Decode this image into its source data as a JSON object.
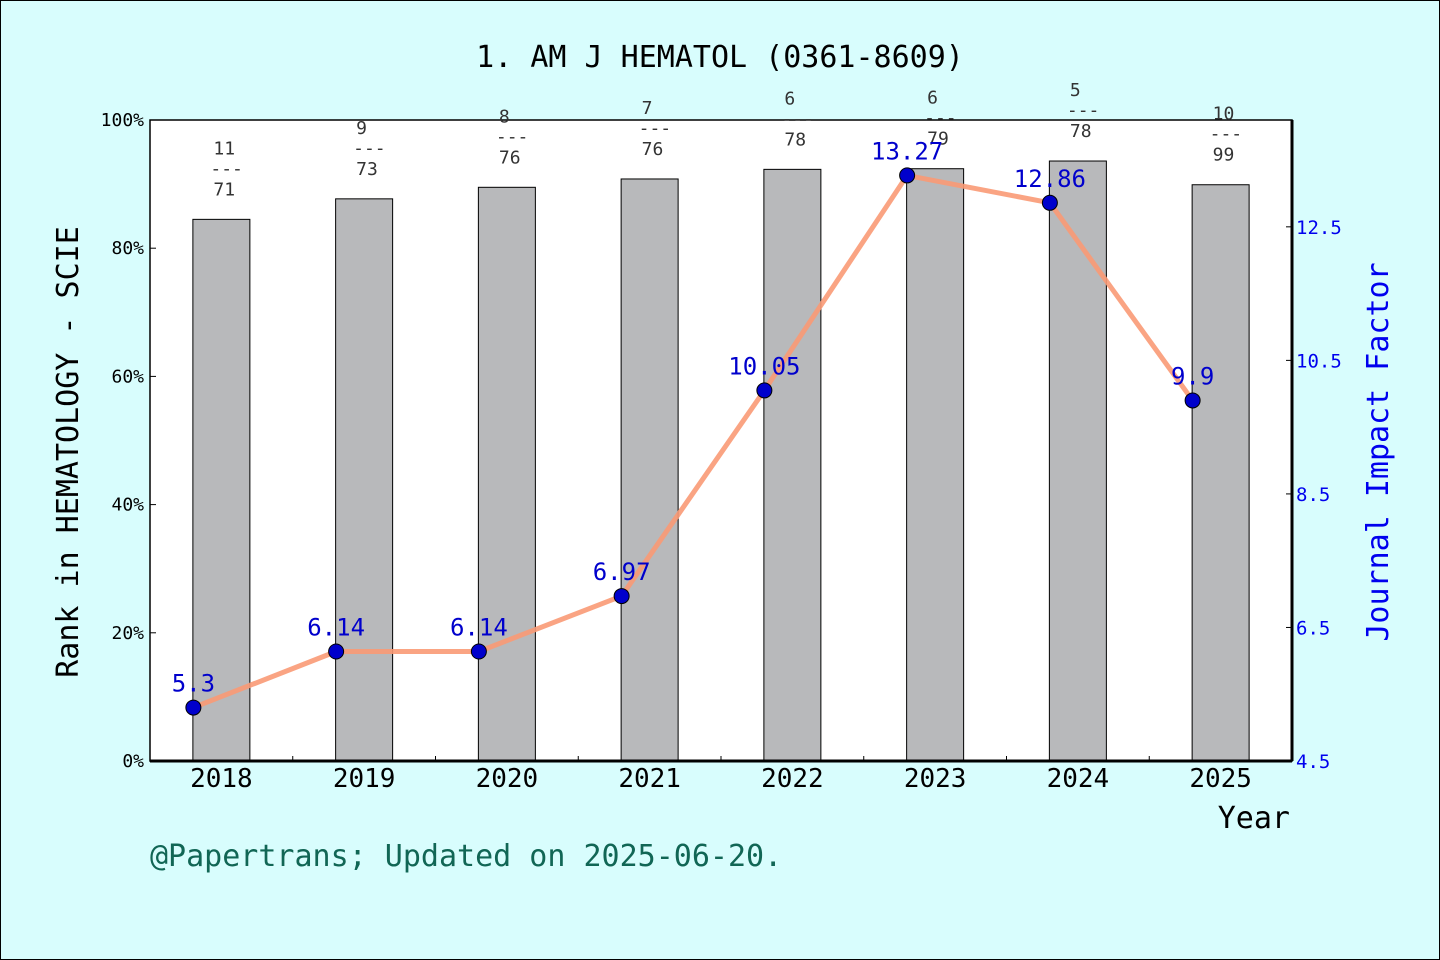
{
  "chart_data": {
    "type": "bar",
    "title": "1. AM J HEMATOL (0361-8609)",
    "xlabel": "Year",
    "ylabel_left": "Rank in HEMATOLOGY - SCIE",
    "ylabel_right": "Journal Impact Factor",
    "footer": "@Papertrans; Updated on 2025-06-20.",
    "categories": [
      "2018",
      "2019",
      "2020",
      "2021",
      "2022",
      "2023",
      "2024",
      "2025"
    ],
    "left_axis": {
      "ylim": [
        0,
        100
      ],
      "ticks": [
        0,
        20,
        40,
        60,
        80,
        100
      ],
      "tick_suffix": "%"
    },
    "right_axis": {
      "ylim": [
        4.5,
        14.1
      ],
      "ticks": [
        "4.5",
        "6.5",
        "8.5",
        "10.5",
        "12.5"
      ]
    },
    "series": [
      {
        "kind": "bar",
        "values": [
          84.5,
          87.7,
          89.5,
          90.8,
          92.3,
          92.4,
          93.6,
          89.9
        ],
        "ranks": [
          {
            "rank": "11",
            "total": "71"
          },
          {
            "rank": "9",
            "total": "73"
          },
          {
            "rank": "8",
            "total": "76"
          },
          {
            "rank": "7",
            "total": "76"
          },
          {
            "rank": "6",
            "total": "78"
          },
          {
            "rank": "6",
            "total": "79"
          },
          {
            "rank": "5",
            "total": "78"
          },
          {
            "rank": "10",
            "total": "99"
          }
        ]
      },
      {
        "kind": "line",
        "axis": "right",
        "values": [
          5.3,
          6.14,
          6.14,
          6.97,
          10.05,
          13.27,
          12.86,
          9.9
        ],
        "labels": [
          "5.3",
          "6.14",
          "6.14",
          "6.97",
          "10.05",
          "13.27",
          "12.86",
          "9.9"
        ]
      }
    ],
    "colors": {
      "background": "#d8fdfd",
      "plot_background": "#ffffff",
      "bar": "#b8b9bb",
      "line": "#f99a76",
      "marker": "#0000cc",
      "right_axis": "#0000ee",
      "footer": "#116655"
    }
  }
}
